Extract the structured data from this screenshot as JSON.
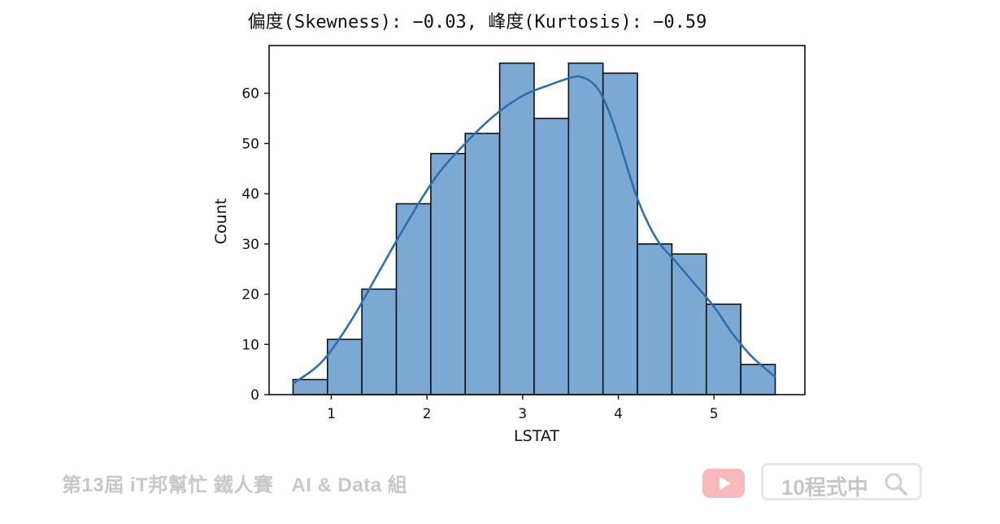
{
  "chart_data": {
    "type": "histogram",
    "title": "偏度(Skewness): −0.03, 峰度(Kurtosis): −0.59",
    "xlabel": "LSTAT",
    "ylabel": "Count",
    "xlim": [
      0.35,
      5.95
    ],
    "ylim": [
      0,
      69.5
    ],
    "xticks": [
      1,
      2,
      3,
      4,
      5
    ],
    "yticks": [
      0,
      10,
      20,
      30,
      40,
      50,
      60
    ],
    "bin_edges": [
      0.6,
      0.96,
      1.32,
      1.68,
      2.04,
      2.4,
      2.76,
      3.12,
      3.48,
      3.84,
      4.2,
      4.56,
      4.92,
      5.28,
      5.64
    ],
    "counts": [
      3,
      11,
      21,
      38,
      48,
      52,
      66,
      55,
      66,
      64,
      30,
      28,
      18,
      6
    ],
    "kde": {
      "x": [
        0.6,
        0.9,
        1.2,
        1.5,
        1.8,
        2.1,
        2.4,
        2.7,
        3.0,
        3.3,
        3.45,
        3.55,
        3.6,
        3.7,
        3.8,
        3.9,
        4.0,
        4.2,
        4.4,
        4.6,
        4.8,
        5.0,
        5.2,
        5.4,
        5.64
      ],
      "y": [
        2.2,
        6.5,
        14.5,
        24.5,
        34.5,
        43.5,
        50,
        55.5,
        59.5,
        61.8,
        62.8,
        63.3,
        63.3,
        62.5,
        60.5,
        56.5,
        51.0,
        39.0,
        31.0,
        26.5,
        22.0,
        17.5,
        12.0,
        7.5,
        3.5
      ]
    },
    "colors": {
      "bar_fill": "#7ba9d3",
      "bar_edge": "#111111",
      "kde_line": "#2e6faf",
      "axis": "#111111"
    }
  },
  "footer": {
    "event_text": "第13屆 iT邦幫忙 鐵人賽",
    "group_text": "AI & Data 組",
    "search_text": "10程式中",
    "youtube_icon": "youtube-icon",
    "search_icon": "magnifier-icon"
  }
}
